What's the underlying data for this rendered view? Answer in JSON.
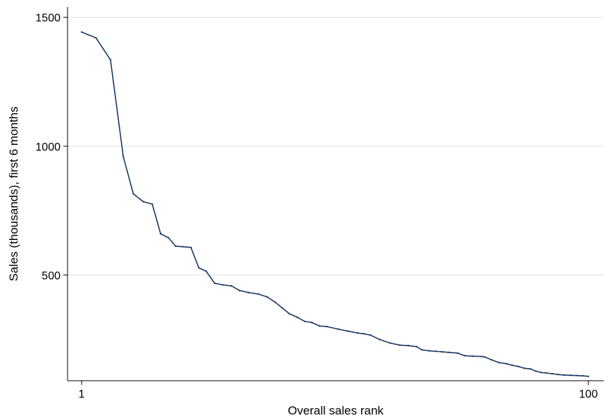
{
  "chart_data": {
    "type": "line",
    "title": "",
    "xlabel": "Overall sales rank",
    "ylabel": "Sales (thousands), first 6 months",
    "x_scale": "log",
    "xlim": [
      0.88,
      115
    ],
    "ylim": [
      90,
      1540
    ],
    "x_ticks": [
      {
        "value": 1,
        "label": "1"
      },
      {
        "value": 100,
        "label": "100"
      }
    ],
    "y_ticks": [
      {
        "value": 500,
        "label": "500"
      },
      {
        "value": 1000,
        "label": "1000"
      },
      {
        "value": 1500,
        "label": "1500"
      }
    ],
    "grid": true,
    "line_color": "#1a3a66",
    "grid_color": "#d8dde6",
    "series": [
      {
        "x": [
          1,
          1.14,
          1.3,
          1.46,
          1.6,
          1.75,
          1.9,
          2.05,
          2.2,
          2.35,
          2.5,
          2.7,
          2.9,
          3.1,
          3.35,
          3.6,
          3.9,
          4.2,
          4.55,
          5.0,
          5.4,
          5.8,
          6.2,
          6.6,
          7.1,
          7.6,
          8.1,
          8.7,
          9.3,
          10.3,
          11.3,
          12.3,
          13.0,
          13.8,
          15.0,
          16.5,
          18.0,
          19.5,
          21.0,
          22.0,
          23.5,
          25.0,
          26.5,
          28.0,
          30.5,
          32.5,
          35.0,
          38.0,
          39.0,
          41.5,
          44.5,
          47.5,
          50.0,
          53.0,
          56.0,
          59.0,
          62.0,
          65.0,
          68.0,
          72.0,
          76.0,
          80.0,
          85.0,
          90.0,
          95.0,
          100.0
        ],
        "values": [
          1443,
          1420,
          1335,
          960,
          815,
          785,
          775,
          660,
          645,
          612,
          610,
          607,
          528,
          515,
          468,
          462,
          458,
          440,
          432,
          426,
          415,
          395,
          372,
          350,
          336,
          320,
          316,
          302,
          300,
          290,
          282,
          275,
          272,
          267,
          250,
          236,
          228,
          226,
          222,
          210,
          206,
          204,
          202,
          200,
          197,
          187,
          185,
          184,
          182,
          171,
          160,
          156,
          150,
          145,
          138,
          136,
          127,
          122,
          120,
          117,
          114,
          112,
          111,
          110,
          109,
          107
        ]
      }
    ]
  }
}
